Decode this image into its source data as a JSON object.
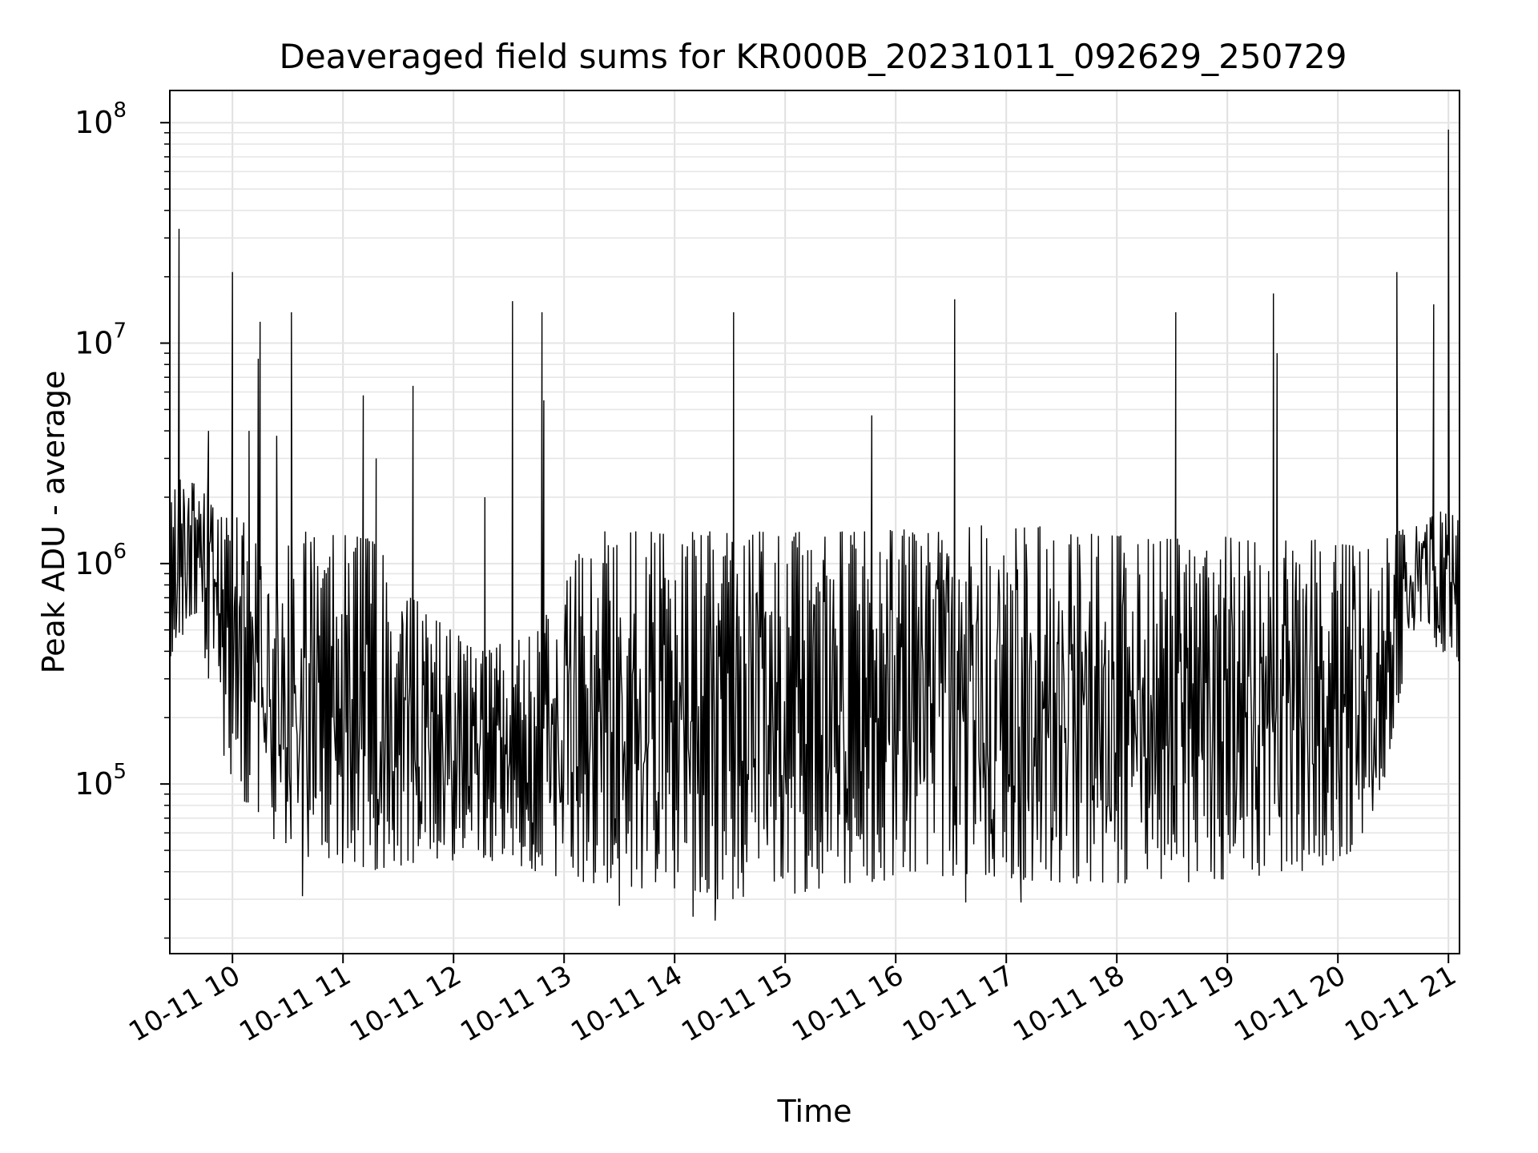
{
  "chart_data": {
    "type": "line",
    "title": "Deaveraged field sums for KR000B_20231011_092629_250729",
    "xlabel": "Time",
    "ylabel": "Peak ADU - average",
    "yscale": "log",
    "ylim": [
      17000,
      140000000
    ],
    "xlim": [
      "2023-10-11 09:26",
      "2023-10-11 21:06"
    ],
    "grid": true,
    "line_color": "#000000",
    "x_ticks": [
      {
        "t": "2023-10-11 10:00",
        "label": "10-11 10"
      },
      {
        "t": "2023-10-11 11:00",
        "label": "10-11 11"
      },
      {
        "t": "2023-10-11 12:00",
        "label": "10-11 12"
      },
      {
        "t": "2023-10-11 13:00",
        "label": "10-11 13"
      },
      {
        "t": "2023-10-11 14:00",
        "label": "10-11 14"
      },
      {
        "t": "2023-10-11 15:00",
        "label": "10-11 15"
      },
      {
        "t": "2023-10-11 16:00",
        "label": "10-11 16"
      },
      {
        "t": "2023-10-11 17:00",
        "label": "10-11 17"
      },
      {
        "t": "2023-10-11 18:00",
        "label": "10-11 18"
      },
      {
        "t": "2023-10-11 19:00",
        "label": "10-11 19"
      },
      {
        "t": "2023-10-11 20:00",
        "label": "10-11 20"
      },
      {
        "t": "2023-10-11 21:00",
        "label": "10-11 21"
      }
    ],
    "y_ticks": [
      {
        "value": 100000,
        "base": "10",
        "exp": "5"
      },
      {
        "value": 1000000,
        "base": "10",
        "exp": "6"
      },
      {
        "value": 10000000,
        "base": "10",
        "exp": "7"
      },
      {
        "value": 100000000,
        "base": "10",
        "exp": "8"
      }
    ],
    "envelope": {
      "note_units": "time, peak ADU - average",
      "points": [
        {
          "t": "2023-10-11 09:26",
          "lo": 360000,
          "hi": 2500000
        },
        {
          "t": "2023-10-11 09:40",
          "lo": 600000,
          "hi": 2300000
        },
        {
          "t": "2023-10-11 09:55",
          "lo": 130000,
          "hi": 1700000
        },
        {
          "t": "2023-10-11 10:15",
          "lo": 60000,
          "hi": 1500000
        },
        {
          "t": "2023-10-11 10:45",
          "lo": 45000,
          "hi": 1400000
        },
        {
          "t": "2023-10-11 11:15",
          "lo": 40000,
          "hi": 1300000
        },
        {
          "t": "2023-10-11 11:45",
          "lo": 45000,
          "hi": 600000
        },
        {
          "t": "2023-10-11 12:15",
          "lo": 45000,
          "hi": 400000
        },
        {
          "t": "2023-10-11 12:45",
          "lo": 40000,
          "hi": 500000
        },
        {
          "t": "2023-10-11 13:15",
          "lo": 35000,
          "hi": 1400000
        },
        {
          "t": "2023-10-11 13:45",
          "lo": 32000,
          "hi": 1400000
        },
        {
          "t": "2023-10-11 14:15",
          "lo": 30000,
          "hi": 1400000
        },
        {
          "t": "2023-10-11 14:45",
          "lo": 30000,
          "hi": 1400000
        },
        {
          "t": "2023-10-11 15:15",
          "lo": 32000,
          "hi": 1400000
        },
        {
          "t": "2023-10-11 15:45",
          "lo": 35000,
          "hi": 1400000
        },
        {
          "t": "2023-10-11 16:15",
          "lo": 38000,
          "hi": 1450000
        },
        {
          "t": "2023-10-11 16:45",
          "lo": 38000,
          "hi": 1500000
        },
        {
          "t": "2023-10-11 17:15",
          "lo": 36000,
          "hi": 1500000
        },
        {
          "t": "2023-10-11 17:45",
          "lo": 35000,
          "hi": 1400000
        },
        {
          "t": "2023-10-11 18:15",
          "lo": 35000,
          "hi": 1300000
        },
        {
          "t": "2023-10-11 18:45",
          "lo": 36000,
          "hi": 1300000
        },
        {
          "t": "2023-10-11 19:15",
          "lo": 38000,
          "hi": 1350000
        },
        {
          "t": "2023-10-11 19:45",
          "lo": 40000,
          "hi": 1300000
        },
        {
          "t": "2023-10-11 20:10",
          "lo": 50000,
          "hi": 1200000
        },
        {
          "t": "2023-10-11 20:25",
          "lo": 100000,
          "hi": 1300000
        },
        {
          "t": "2023-10-11 20:40",
          "lo": 500000,
          "hi": 1500000
        },
        {
          "t": "2023-10-11 21:06",
          "lo": 350000,
          "hi": 1900000
        }
      ]
    },
    "spikes": [
      {
        "t": "2023-10-11 09:31",
        "value": 33000000
      },
      {
        "t": "2023-10-11 09:47",
        "value": 4000000
      },
      {
        "t": "2023-10-11 10:00",
        "value": 21000000
      },
      {
        "t": "2023-10-11 10:09",
        "value": 4000000
      },
      {
        "t": "2023-10-11 10:14",
        "value": 8500000
      },
      {
        "t": "2023-10-11 10:15",
        "value": 12500000
      },
      {
        "t": "2023-10-11 10:24",
        "value": 3800000
      },
      {
        "t": "2023-10-11 10:32",
        "value": 13800000
      },
      {
        "t": "2023-10-11 11:11",
        "value": 5800000
      },
      {
        "t": "2023-10-11 11:18",
        "value": 3000000
      },
      {
        "t": "2023-10-11 11:38",
        "value": 6400000
      },
      {
        "t": "2023-10-11 12:17",
        "value": 2000000
      },
      {
        "t": "2023-10-11 12:32",
        "value": 15500000
      },
      {
        "t": "2023-10-11 12:48",
        "value": 13800000
      },
      {
        "t": "2023-10-11 12:49",
        "value": 5500000
      },
      {
        "t": "2023-10-11 14:32",
        "value": 13800000
      },
      {
        "t": "2023-10-11 15:47",
        "value": 4700000
      },
      {
        "t": "2023-10-11 16:32",
        "value": 15800000
      },
      {
        "t": "2023-10-11 18:32",
        "value": 13800000
      },
      {
        "t": "2023-10-11 19:25",
        "value": 16800000
      },
      {
        "t": "2023-10-11 19:27",
        "value": 9000000
      },
      {
        "t": "2023-10-11 20:32",
        "value": 21000000
      },
      {
        "t": "2023-10-11 20:52",
        "value": 15000000
      },
      {
        "t": "2023-10-11 21:00",
        "value": 93000000
      }
    ],
    "dips": [
      {
        "t": "2023-10-11 10:38",
        "value": 31000
      },
      {
        "t": "2023-10-11 13:30",
        "value": 28000
      },
      {
        "t": "2023-10-11 14:10",
        "value": 25000
      },
      {
        "t": "2023-10-11 14:22",
        "value": 24000
      },
      {
        "t": "2023-10-11 16:38",
        "value": 29000
      },
      {
        "t": "2023-10-11 17:08",
        "value": 29000
      }
    ]
  }
}
